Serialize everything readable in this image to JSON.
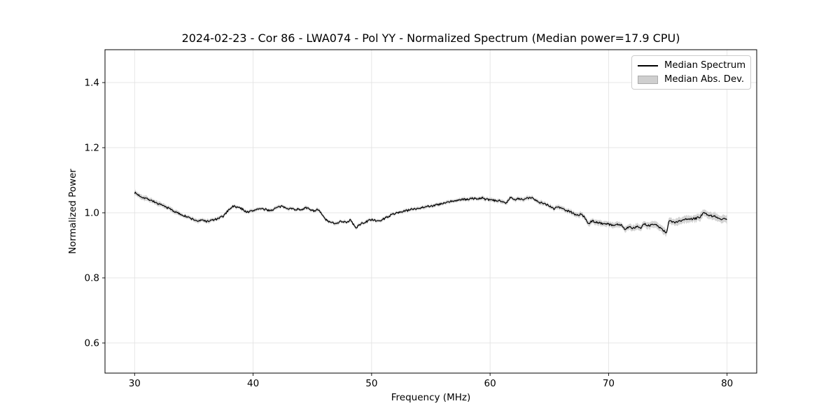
{
  "figure": {
    "title": "2024-02-23 - Cor 86 - LWA074 - Pol YY - Normalized Spectrum (Median power=17.9 CPU)",
    "title_parts": {
      "date": "2024-02-23",
      "correlator": "Cor 86",
      "antenna": "LWA074",
      "polarization": "Pol YY",
      "median_power_cpu": 17.9
    }
  },
  "legend": {
    "items": [
      {
        "label": "Median Spectrum",
        "swatch": "line"
      },
      {
        "label": "Median Abs. Dev.",
        "swatch": "patch"
      }
    ]
  },
  "chart_data": {
    "type": "line",
    "title": "2024-02-23 - Cor 86 - LWA074 - Pol YY - Normalized Spectrum (Median power=17.9 CPU)",
    "xlabel": "Frequency (MHz)",
    "ylabel": "Normalized Power",
    "xlim": [
      27.5,
      82.5
    ],
    "ylim": [
      0.5075,
      1.501
    ],
    "x_ticks": [
      30,
      40,
      50,
      60,
      70,
      80
    ],
    "y_ticks": [
      0.6,
      0.8,
      1.0,
      1.2,
      1.4
    ],
    "grid": true,
    "legend_position": "upper right",
    "colors": {
      "line": "#000000",
      "band_fill": "#999999",
      "band_fill_opacity": 0.42,
      "grid": "#e3e3e3",
      "spine": "#000000",
      "text": "#000000"
    },
    "series": [
      {
        "name": "Median Spectrum",
        "type": "line",
        "color": "#000000",
        "keypoints": [
          [
            30.0,
            1.062
          ],
          [
            30.3,
            1.055
          ],
          [
            30.6,
            1.049
          ],
          [
            31.0,
            1.044
          ],
          [
            31.5,
            1.037
          ],
          [
            32.0,
            1.027
          ],
          [
            32.5,
            1.02
          ],
          [
            33.0,
            1.012
          ],
          [
            33.5,
            1.001
          ],
          [
            34.0,
            0.994
          ],
          [
            34.5,
            0.986
          ],
          [
            35.0,
            0.979
          ],
          [
            35.4,
            0.974
          ],
          [
            35.8,
            0.978
          ],
          [
            36.1,
            0.973
          ],
          [
            36.5,
            0.977
          ],
          [
            37.0,
            0.981
          ],
          [
            37.5,
            0.99
          ],
          [
            38.0,
            1.012
          ],
          [
            38.3,
            1.02
          ],
          [
            38.7,
            1.017
          ],
          [
            39.0,
            1.013
          ],
          [
            39.5,
            1.002
          ],
          [
            40.0,
            1.006
          ],
          [
            40.4,
            1.013
          ],
          [
            41.0,
            1.01
          ],
          [
            41.5,
            1.007
          ],
          [
            42.0,
            1.016
          ],
          [
            42.4,
            1.019
          ],
          [
            43.0,
            1.014
          ],
          [
            43.5,
            1.011
          ],
          [
            44.0,
            1.01
          ],
          [
            44.4,
            1.015
          ],
          [
            44.8,
            1.011
          ],
          [
            45.1,
            1.006
          ],
          [
            45.4,
            1.01
          ],
          [
            45.7,
            1.001
          ],
          [
            46.0,
            0.984
          ],
          [
            46.4,
            0.971
          ],
          [
            47.0,
            0.968
          ],
          [
            47.4,
            0.974
          ],
          [
            48.0,
            0.971
          ],
          [
            48.2,
            0.978
          ],
          [
            48.5,
            0.963
          ],
          [
            48.7,
            0.951
          ],
          [
            48.9,
            0.962
          ],
          [
            49.2,
            0.968
          ],
          [
            49.6,
            0.973
          ],
          [
            50.0,
            0.98
          ],
          [
            50.5,
            0.973
          ],
          [
            50.9,
            0.979
          ],
          [
            51.3,
            0.987
          ],
          [
            51.6,
            0.992
          ],
          [
            52.0,
            0.999
          ],
          [
            52.5,
            1.003
          ],
          [
            53.0,
            1.007
          ],
          [
            53.5,
            1.012
          ],
          [
            54.0,
            1.014
          ],
          [
            54.5,
            1.019
          ],
          [
            55.0,
            1.021
          ],
          [
            55.5,
            1.024
          ],
          [
            56.0,
            1.028
          ],
          [
            56.5,
            1.033
          ],
          [
            57.0,
            1.037
          ],
          [
            57.5,
            1.04
          ],
          [
            58.0,
            1.041
          ],
          [
            58.5,
            1.044
          ],
          [
            59.0,
            1.043
          ],
          [
            59.3,
            1.046
          ],
          [
            59.7,
            1.04
          ],
          [
            60.0,
            1.04
          ],
          [
            60.4,
            1.037
          ],
          [
            61.0,
            1.037
          ],
          [
            61.4,
            1.03
          ],
          [
            61.7,
            1.049
          ],
          [
            62.0,
            1.039
          ],
          [
            62.4,
            1.043
          ],
          [
            62.8,
            1.04
          ],
          [
            63.2,
            1.045
          ],
          [
            63.5,
            1.047
          ],
          [
            63.8,
            1.041
          ],
          [
            64.2,
            1.032
          ],
          [
            64.6,
            1.028
          ],
          [
            65.0,
            1.022
          ],
          [
            65.4,
            1.012
          ],
          [
            65.7,
            1.019
          ],
          [
            66.0,
            1.014
          ],
          [
            66.4,
            1.008
          ],
          [
            66.8,
            1.003
          ],
          [
            67.1,
            0.997
          ],
          [
            67.4,
            0.992
          ],
          [
            67.7,
            0.996
          ],
          [
            68.0,
            0.985
          ],
          [
            68.3,
            0.964
          ],
          [
            68.6,
            0.975
          ],
          [
            69.0,
            0.971
          ],
          [
            69.4,
            0.968
          ],
          [
            70.0,
            0.965
          ],
          [
            70.4,
            0.961
          ],
          [
            70.8,
            0.965
          ],
          [
            71.1,
            0.961
          ],
          [
            71.4,
            0.949
          ],
          [
            71.7,
            0.957
          ],
          [
            72.0,
            0.953
          ],
          [
            72.4,
            0.958
          ],
          [
            72.7,
            0.954
          ],
          [
            73.0,
            0.966
          ],
          [
            73.4,
            0.96
          ],
          [
            73.7,
            0.964
          ],
          [
            74.0,
            0.964
          ],
          [
            74.3,
            0.955
          ],
          [
            74.6,
            0.946
          ],
          [
            74.9,
            0.939
          ],
          [
            75.1,
            0.978
          ],
          [
            75.4,
            0.97
          ],
          [
            75.8,
            0.972
          ],
          [
            76.2,
            0.976
          ],
          [
            76.6,
            0.981
          ],
          [
            77.0,
            0.981
          ],
          [
            77.4,
            0.983
          ],
          [
            77.7,
            0.987
          ],
          [
            78.0,
            1.001
          ],
          [
            78.3,
            0.996
          ],
          [
            78.6,
            0.991
          ],
          [
            79.0,
            0.989
          ],
          [
            79.3,
            0.984
          ],
          [
            79.6,
            0.98
          ],
          [
            79.8,
            0.983
          ],
          [
            80.0,
            0.977
          ]
        ]
      },
      {
        "name": "Median Abs. Dev.",
        "type": "band",
        "color": "#bbbbbb",
        "halfwidth_keypoints": [
          [
            30,
            0.0075
          ],
          [
            33,
            0.006
          ],
          [
            36,
            0.0055
          ],
          [
            40,
            0.005
          ],
          [
            45,
            0.005
          ],
          [
            50,
            0.0048
          ],
          [
            55,
            0.005
          ],
          [
            60,
            0.0058
          ],
          [
            63,
            0.006
          ],
          [
            66,
            0.0068
          ],
          [
            69,
            0.008
          ],
          [
            72,
            0.009
          ],
          [
            75,
            0.0105
          ],
          [
            78,
            0.011
          ],
          [
            80,
            0.012
          ]
        ]
      }
    ],
    "noise": {
      "seed": 7,
      "amplitude": 0.0032,
      "sample_step_mhz": 0.06
    }
  }
}
